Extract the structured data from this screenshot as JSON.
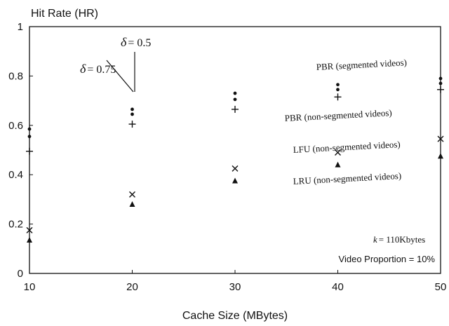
{
  "chart_data": {
    "type": "scatter",
    "ylabel": "Hit Rate (HR)",
    "xlabel": "Cache Size (MBytes)",
    "x": [
      10,
      20,
      30,
      40,
      50
    ],
    "xlim": [
      10,
      50
    ],
    "ylim": [
      0,
      1
    ],
    "x_ticks": [
      "10",
      "20",
      "30",
      "40",
      "50"
    ],
    "y_ticks": [
      "0",
      "0.2",
      "0.4",
      "0.6",
      "0.8",
      "1"
    ],
    "grid": false,
    "series": [
      {
        "name": "PBR (segmented videos)",
        "marker": "dot",
        "variant": "δ = 0.5",
        "values": [
          0.585,
          0.665,
          0.73,
          0.765,
          0.79
        ]
      },
      {
        "name": "PBR (segmented videos)",
        "marker": "dot",
        "variant": "δ = 0.75",
        "values": [
          0.555,
          0.645,
          0.705,
          0.745,
          0.77
        ]
      },
      {
        "name": "PBR (non-segmented videos)",
        "marker": "plus",
        "values": [
          0.495,
          0.605,
          0.665,
          0.715,
          0.745
        ]
      },
      {
        "name": "LFU (non-segmented videos)",
        "marker": "cross",
        "values": [
          0.175,
          0.32,
          0.425,
          0.49,
          0.545
        ]
      },
      {
        "name": "LRU (non-segmented videos)",
        "marker": "triangle",
        "values": [
          0.135,
          0.28,
          0.375,
          0.44,
          0.475
        ]
      }
    ],
    "annotations": {
      "pbr_segmented": "PBR (segmented videos)",
      "pbr_nonsegmented": "PBR (non-segmented videos)",
      "lfu": "LFU (non-segmented videos)",
      "lru": "LRU (non-segmented videos)",
      "delta_symbol": "δ",
      "delta_high": "= 0.75",
      "delta_low": "= 0.5",
      "k_symbol": "k",
      "k_value": "= 110Kbytes",
      "video_proportion": "Video Proportion = 10%"
    }
  }
}
